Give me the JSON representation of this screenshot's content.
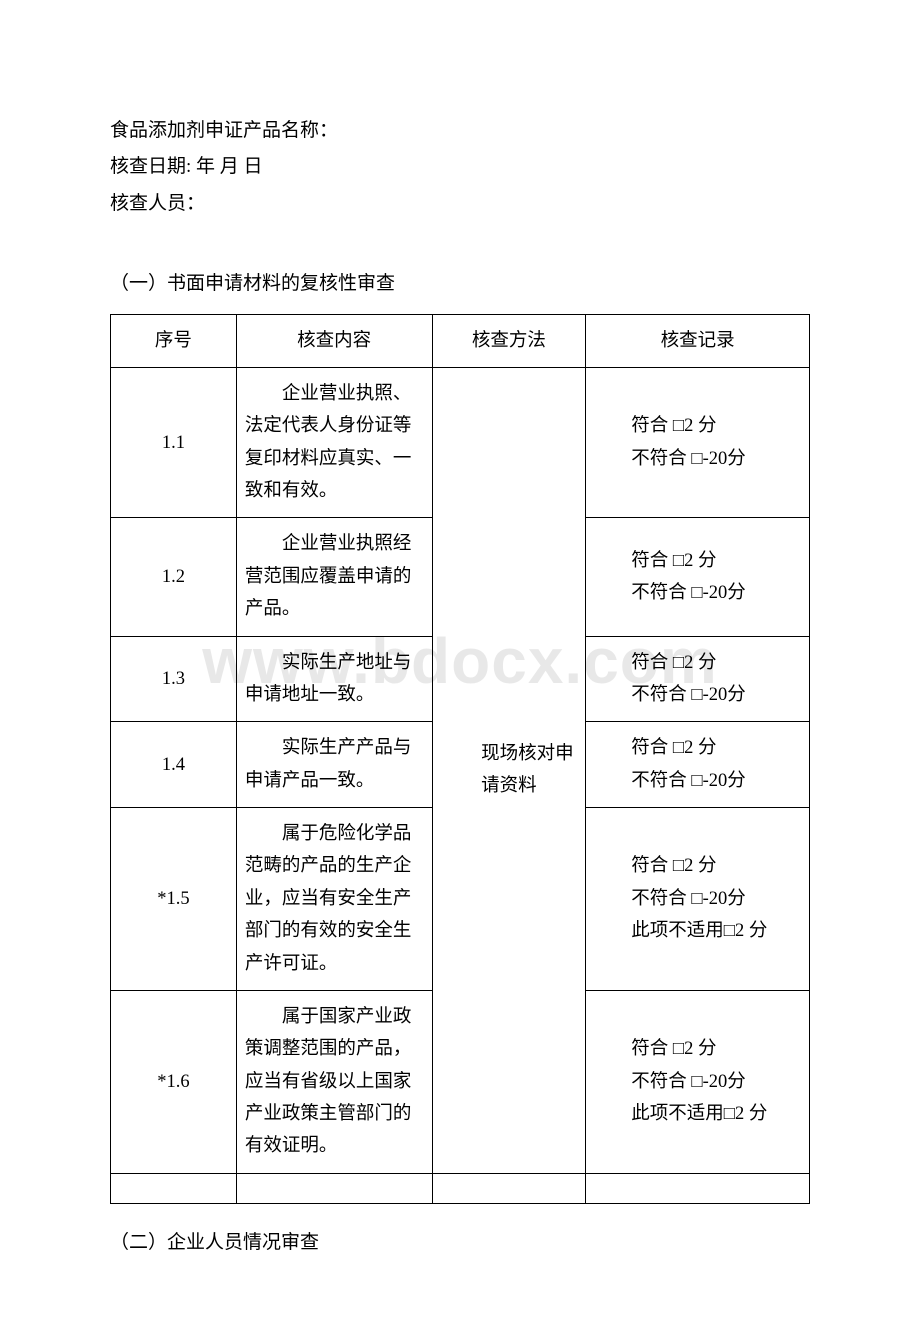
{
  "watermark": "www.bdocx.com",
  "header": {
    "line1": "食品添加剂申证产品名称：",
    "line2": "核查日期: 年 月 日",
    "line3": "核查人员："
  },
  "section1_title": "（一）书面申请材料的复核性审查",
  "section2_title": "（二）企业人员情况审查",
  "table": {
    "headers": [
      "序号",
      "核查内容",
      "核查方法",
      "核查记录"
    ],
    "method_merged": "现场核对申请资料",
    "rows": [
      {
        "no": "1.1",
        "content": "企业营业执照、法定代表人身份证等复印材料应真实、一致和有效。",
        "record_conform": "符合 □2 分",
        "record_nonconform": "不符合 □-20分",
        "record_na": null
      },
      {
        "no": "1.2",
        "content": "企业营业执照经营范围应覆盖申请的产品。",
        "record_conform": "符合 □2 分",
        "record_nonconform": "不符合 □-20分",
        "record_na": null
      },
      {
        "no": "1.3",
        "content": "实际生产地址与申请地址一致。",
        "record_conform": "符合 □2 分",
        "record_nonconform": "不符合 □-20分",
        "record_na": null
      },
      {
        "no": "1.4",
        "content": "实际生产产品与申请产品一致。",
        "record_conform": "符合 □2 分",
        "record_nonconform": "不符合 □-20分",
        "record_na": null
      },
      {
        "no": "*1.5",
        "content": "属于危险化学品范畴的产品的生产企业，应当有安全生产部门的有效的安全生产许可证。",
        "record_conform": "符合 □2 分",
        "record_nonconform": "不符合 □-20分",
        "record_na": "此项不适用□2 分"
      },
      {
        "no": "*1.6",
        "content": "属于国家产业政策调整范围的产品，应当有省级以上国家产业政策主管部门的有效证明。",
        "record_conform": "符合 □2 分",
        "record_nonconform": "不符合 □-20分",
        "record_na": "此项不适用□2 分"
      }
    ]
  }
}
